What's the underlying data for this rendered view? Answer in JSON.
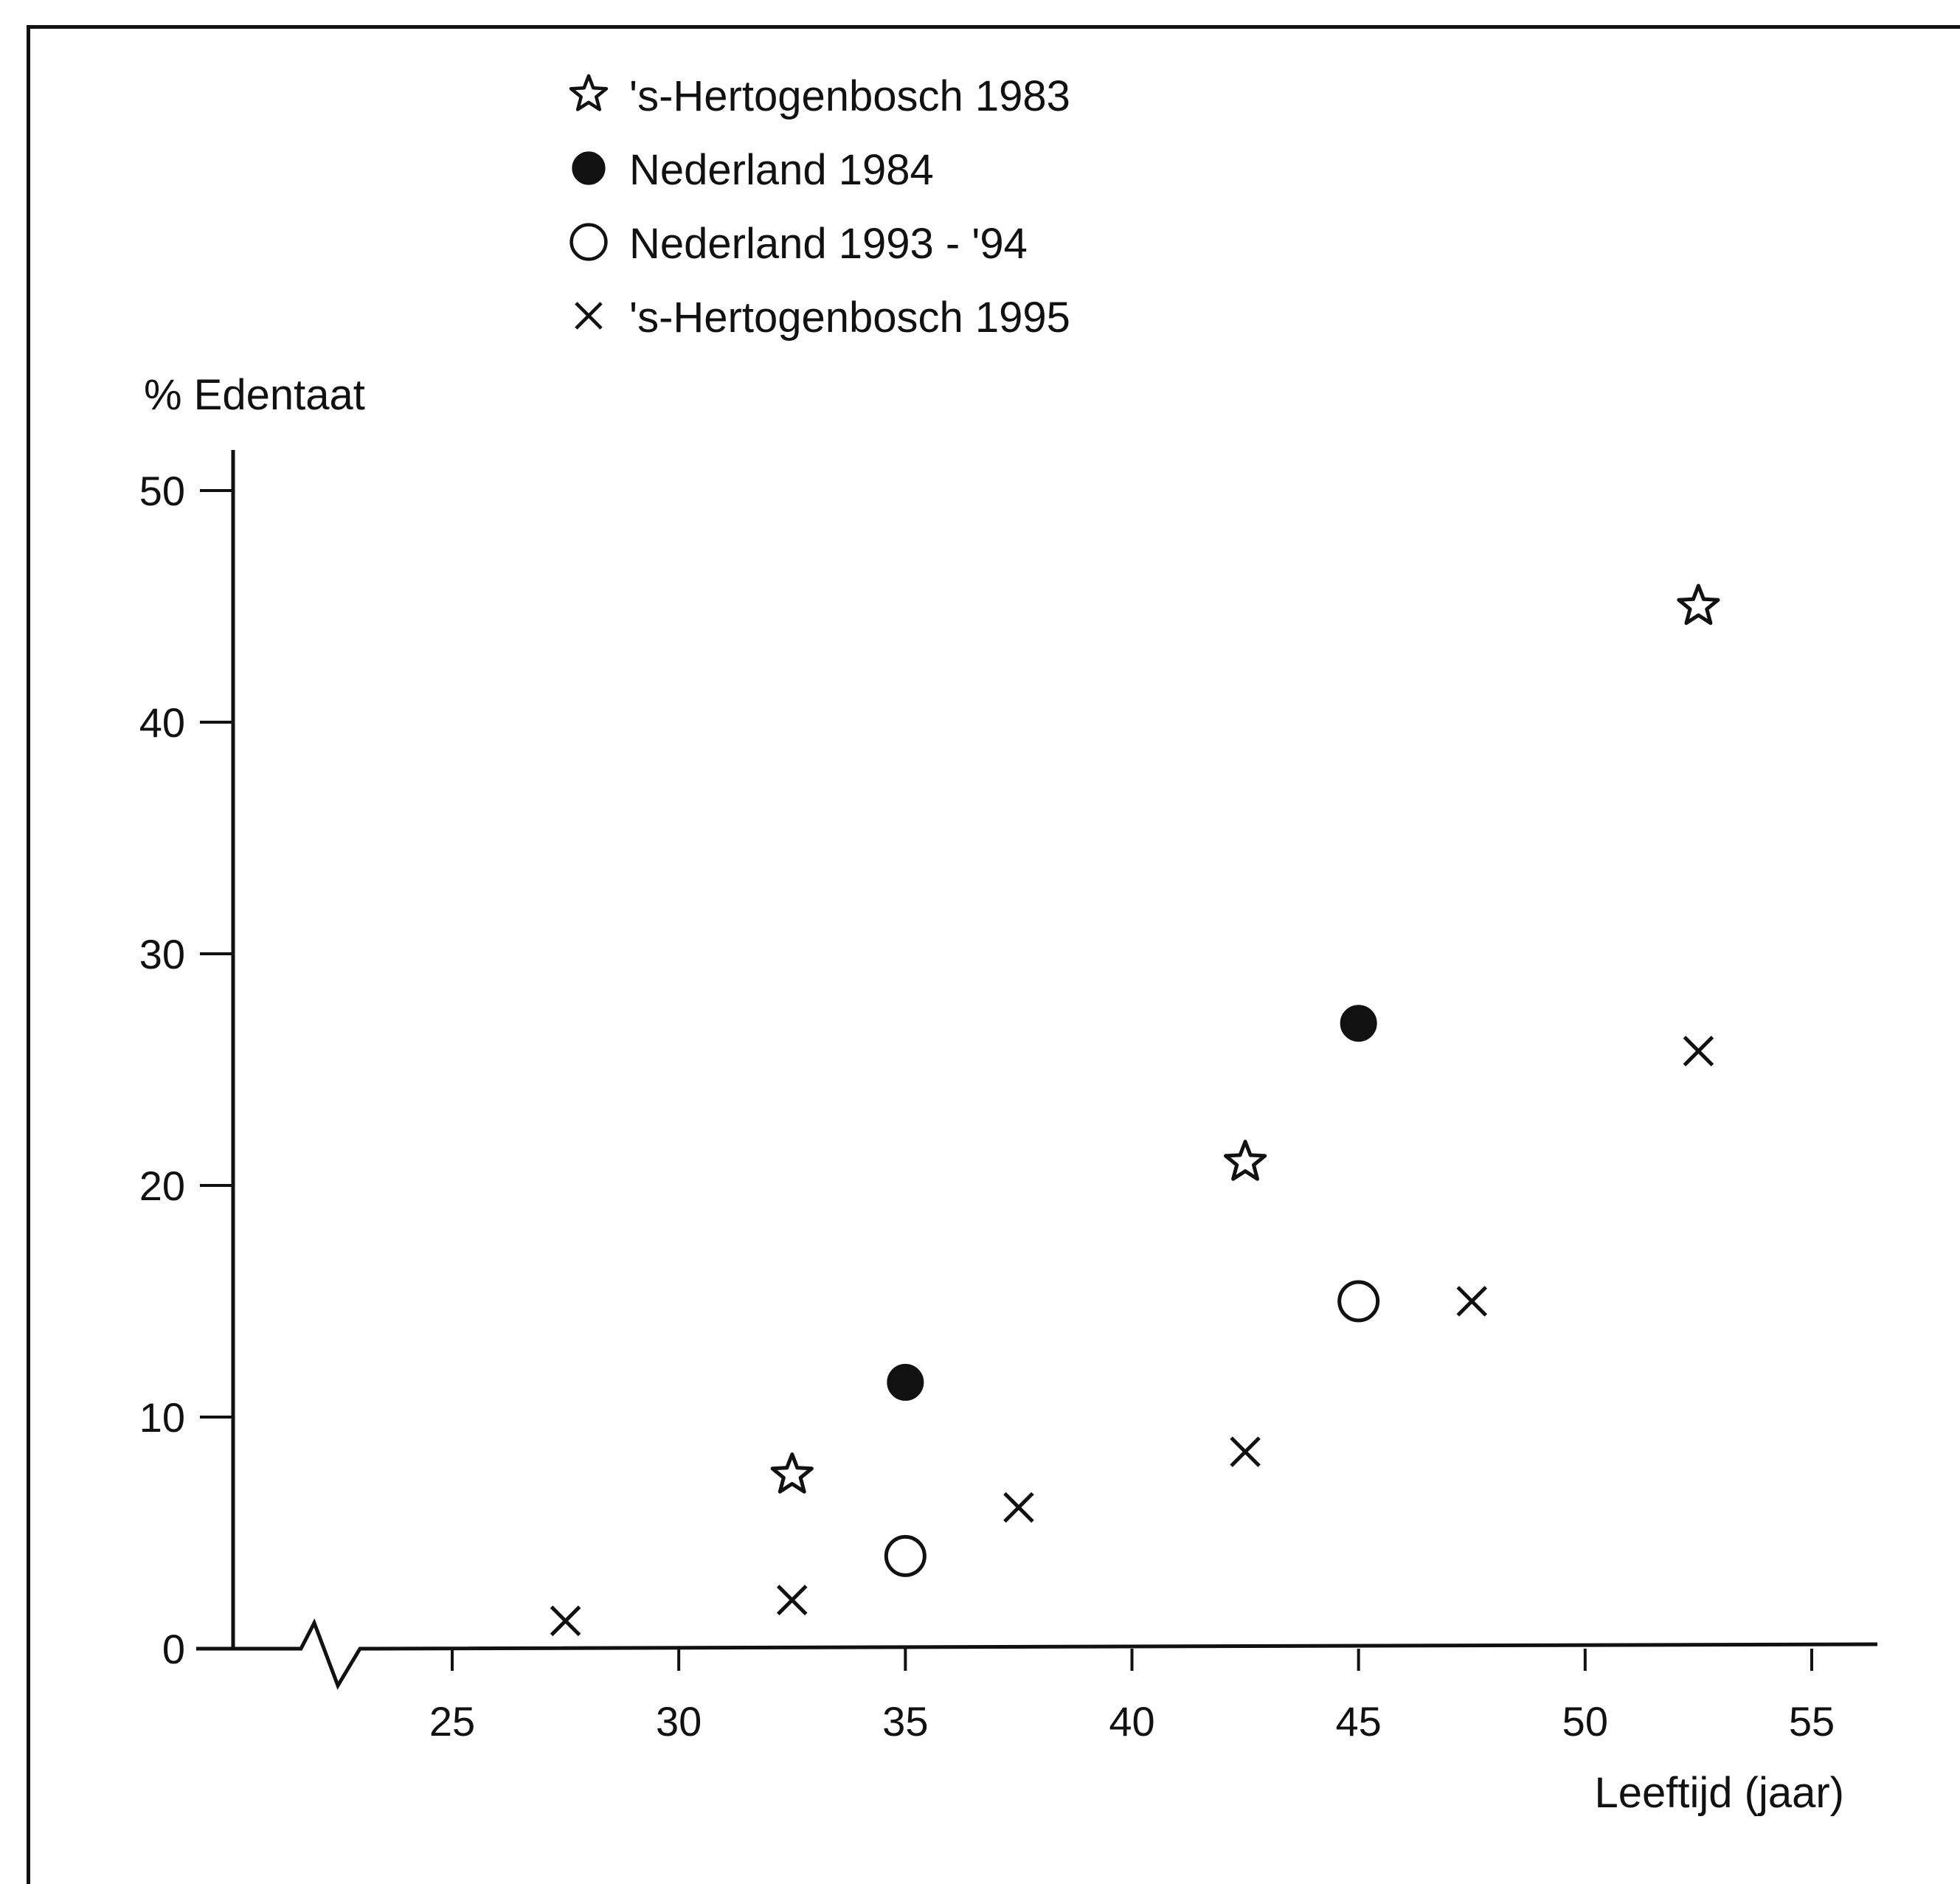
{
  "chart_data": {
    "type": "scatter",
    "title": "",
    "xlabel": "Leeftijd (jaar)",
    "ylabel": "% Edentaat",
    "xlim": [
      20,
      57
    ],
    "ylim": [
      0,
      50
    ],
    "x_ticks": [
      25,
      30,
      35,
      40,
      45,
      50,
      55
    ],
    "y_ticks": [
      0,
      10,
      20,
      30,
      40,
      50
    ],
    "x_axis_break": true,
    "grid": false,
    "legend_position": "top-left",
    "series": [
      {
        "name": "'s-Hertogenbosch 1983",
        "marker": "star",
        "color": "#111111",
        "x": [
          32.5,
          42.5,
          52.5
        ],
        "y": [
          7.5,
          21,
          45
        ]
      },
      {
        "name": "Nederland 1984",
        "marker": "filled-circle",
        "color": "#111111",
        "x": [
          35,
          45
        ],
        "y": [
          11.5,
          27
        ]
      },
      {
        "name": "Nederland 1993 - '94",
        "marker": "open-circle",
        "color": "#111111",
        "x": [
          35,
          45
        ],
        "y": [
          4,
          15
        ]
      },
      {
        "name": "'s-Hertogenbosch 1995",
        "marker": "cross",
        "color": "#111111",
        "x": [
          27.5,
          32.5,
          37.5,
          42.5,
          47.5,
          52.5
        ],
        "y": [
          1.2,
          2.1,
          6.1,
          8.5,
          15,
          25.8
        ]
      }
    ]
  }
}
